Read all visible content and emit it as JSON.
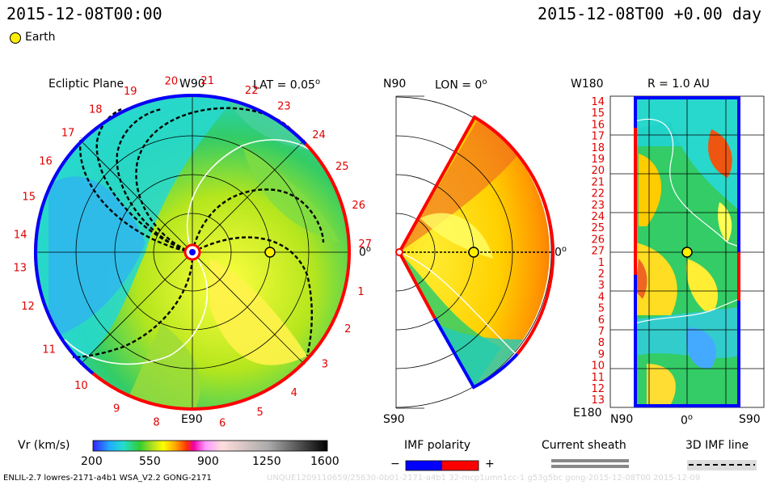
{
  "header": {
    "title_left": "2015-12-08T00:00",
    "title_right": "2015-12-08T00 +0.00 day"
  },
  "legend": {
    "earth_label": "Earth"
  },
  "panels": {
    "ecliptic": {
      "title": "Ecliptic Plane",
      "lat_label": "LAT = 0.05",
      "lat_unit": "o",
      "top_label": "W90",
      "bottom_label": "E90",
      "right_label": "0",
      "right_unit": "o",
      "carrington_labels": [
        "1",
        "2",
        "3",
        "4",
        "5",
        "6",
        "8",
        "9",
        "10",
        "11",
        "12",
        "13",
        "14",
        "15",
        "16",
        "17",
        "18",
        "19",
        "20",
        "21",
        "22",
        "23",
        "24",
        "25",
        "26",
        "27"
      ]
    },
    "meridional": {
      "top_label": "N90",
      "lon_label": "LON = 0",
      "lon_unit": "o",
      "bottom_label": "S90",
      "right_label": "0",
      "right_unit": "o"
    },
    "sphere": {
      "top_left_label": "W180",
      "title": "R = 1.0 AU",
      "bottom_left_label": "E180",
      "x_labels": [
        "N90",
        "0",
        "S90"
      ],
      "x_unit": "o",
      "y_labels": [
        "14",
        "15",
        "16",
        "17",
        "18",
        "19",
        "20",
        "21",
        "22",
        "23",
        "24",
        "25",
        "26",
        "27",
        "1",
        "2",
        "3",
        "4",
        "5",
        "6",
        "7",
        "8",
        "9",
        "10",
        "11",
        "12",
        "13"
      ]
    }
  },
  "colorbar": {
    "title": "Vr (km/s)",
    "ticks": [
      "200",
      "550",
      "900",
      "1250",
      "1600"
    ],
    "vmin": 200,
    "vmax": 1600
  },
  "imf_polarity": {
    "title": "IMF polarity",
    "minus": "−",
    "plus": "+",
    "colors": [
      "#0000ff",
      "#ff0000"
    ]
  },
  "current_sheath": {
    "title": "Current sheath"
  },
  "imf_line": {
    "title": "3D IMF line"
  },
  "footer": {
    "left": "ENLIL-2.7 lowres-2171-a4b1 WSA_V2.2 GONG-2171",
    "right": "UNQUE1209110659/25630-0b01-2171-a4b1 32-mcp1umn1cc-1 g53g5bc gong-2015-12-08T00 2015-12-09"
  },
  "chart_data": [
    {
      "type": "heatmap",
      "name": "ecliptic-plane-radial-velocity",
      "units": "km/s",
      "range": [
        200,
        1600
      ]
    },
    {
      "type": "heatmap",
      "name": "meridional-plane-radial-velocity",
      "units": "km/s",
      "range": [
        200,
        1600
      ]
    },
    {
      "type": "heatmap",
      "name": "1AU-sphere-radial-velocity",
      "units": "km/s",
      "range": [
        200,
        1600
      ]
    }
  ]
}
